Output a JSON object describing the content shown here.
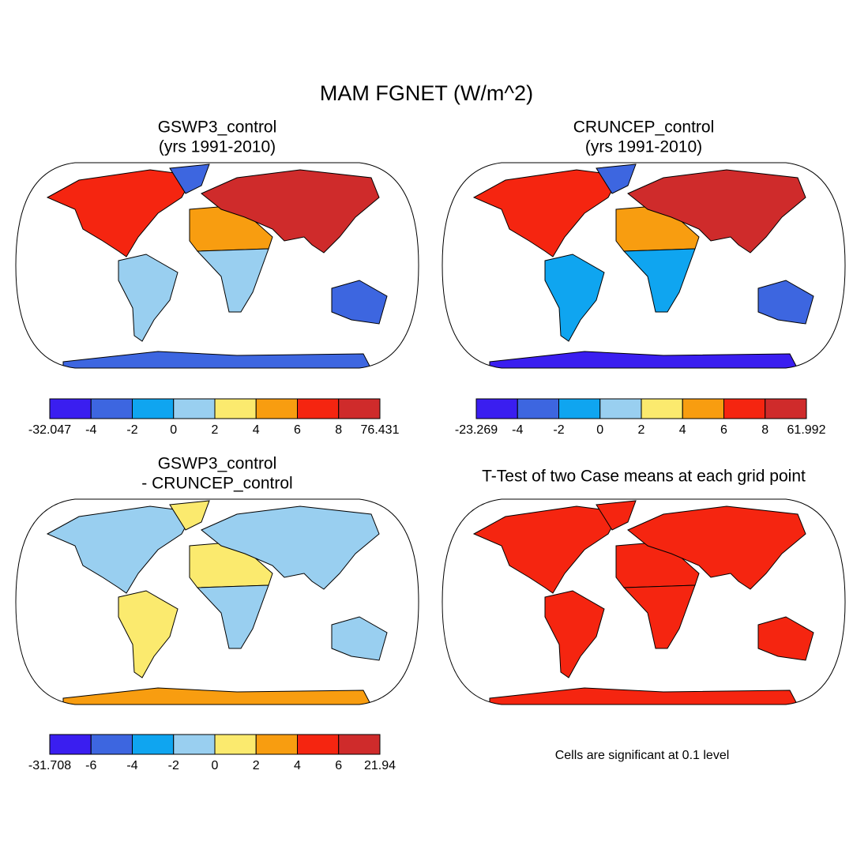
{
  "title": "MAM FGNET (W/m^2)",
  "panels": [
    {
      "title": [
        "GSWP3_control",
        "(yrs 1991-2010)"
      ],
      "colorbar": {
        "labels": [
          -32.047,
          -4,
          -2,
          0,
          2,
          4,
          6,
          8,
          76.431
        ],
        "colors": [
          "#3a1ef0",
          "#3d66e0",
          "#0fa5f0",
          "#99cff0",
          "#fbea6e",
          "#f89d10",
          "#f52510",
          "#cf2b2b"
        ]
      }
    },
    {
      "title": [
        "CRUNCEP_control",
        "(yrs 1991-2010)"
      ],
      "colorbar": {
        "labels": [
          -23.269,
          -4,
          -2,
          0,
          2,
          4,
          6,
          8,
          61.992
        ],
        "colors": [
          "#3a1ef0",
          "#3d66e0",
          "#0fa5f0",
          "#99cff0",
          "#fbea6e",
          "#f89d10",
          "#f52510",
          "#cf2b2b"
        ]
      }
    },
    {
      "title": [
        "GSWP3_control",
        "- CRUNCEP_control"
      ],
      "colorbar": {
        "labels": [
          -31.708,
          -6,
          -4,
          -2,
          0,
          2,
          4,
          6,
          21.94
        ],
        "colors": [
          "#3a1ef0",
          "#3d66e0",
          "#0fa5f0",
          "#99cff0",
          "#fbea6e",
          "#f89d10",
          "#f52510",
          "#cf2b2b"
        ]
      }
    },
    {
      "title": [
        "T-Test of two Case means at each grid point"
      ],
      "note": "Cells are significant at 0.1 level"
    }
  ]
}
